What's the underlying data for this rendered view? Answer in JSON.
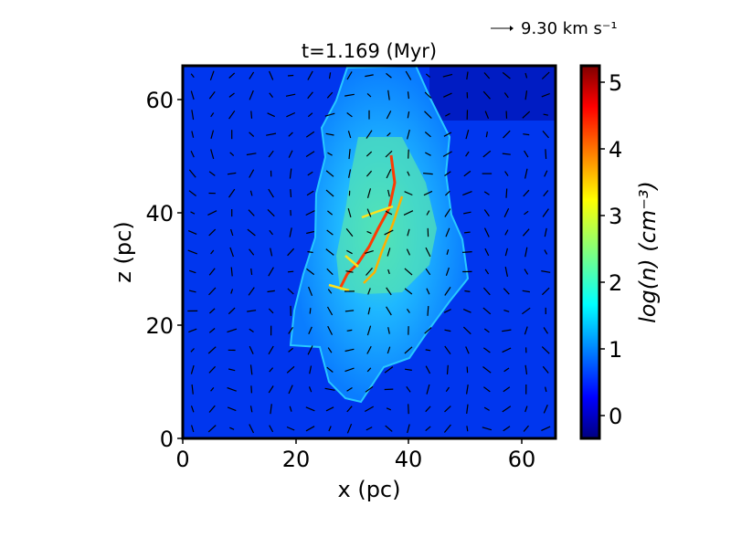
{
  "chart_data": {
    "type": "heatmap",
    "title": "t=1.169 (Myr)",
    "xlabel": "x (pc)",
    "ylabel": "z (pc)",
    "xlim": [
      0,
      66
    ],
    "ylim": [
      0,
      66
    ],
    "x_ticks": [
      "0",
      "20",
      "40",
      "60"
    ],
    "y_ticks": [
      "0",
      "20",
      "40",
      "60"
    ],
    "colorbar": {
      "label": "log(n) (cm⁻³)",
      "ticks": [
        "0",
        "1",
        "2",
        "3",
        "4",
        "5"
      ],
      "range": [
        -0.4,
        5.25
      ],
      "colormap": "jet"
    },
    "quiver_key": {
      "value": 9.3,
      "label": "9.30 km s⁻¹"
    },
    "colors": {
      "background_low": "#00008f",
      "ambient": "#0033ff",
      "cloud": "#1f9fff",
      "filament": "#ff2a00"
    }
  }
}
